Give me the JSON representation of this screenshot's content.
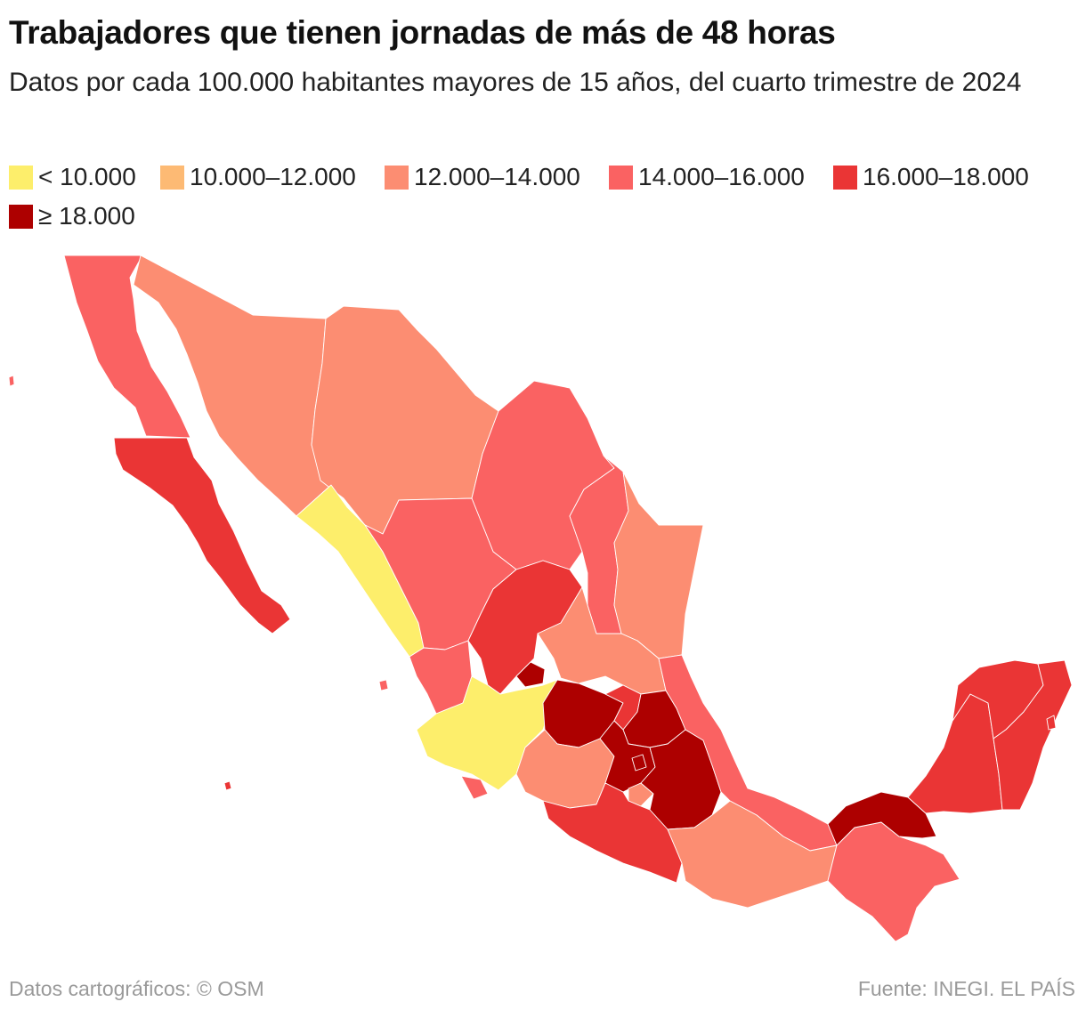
{
  "title": "Trabajadores que tienen jornadas de más de 48 horas",
  "subtitle": "Datos por cada 100.000 habitantes mayores de 15 años, del cuarto trimestre de 2024",
  "legend": [
    {
      "label": "< 10.000",
      "color": "#fdee6b"
    },
    {
      "label": "10.000–12.000",
      "color": "#fdba74"
    },
    {
      "label": "12.000–14.000",
      "color": "#fc8d72"
    },
    {
      "label": "14.000–16.000",
      "color": "#fa6262"
    },
    {
      "label": "16.000–18.000",
      "color": "#ea3535"
    },
    {
      "label": "≥ 18.000",
      "color": "#ad0000"
    }
  ],
  "footer": {
    "credit": "Datos cartográficos: © OSM",
    "source": "Fuente: INEGI. EL PAÍS"
  }
}
